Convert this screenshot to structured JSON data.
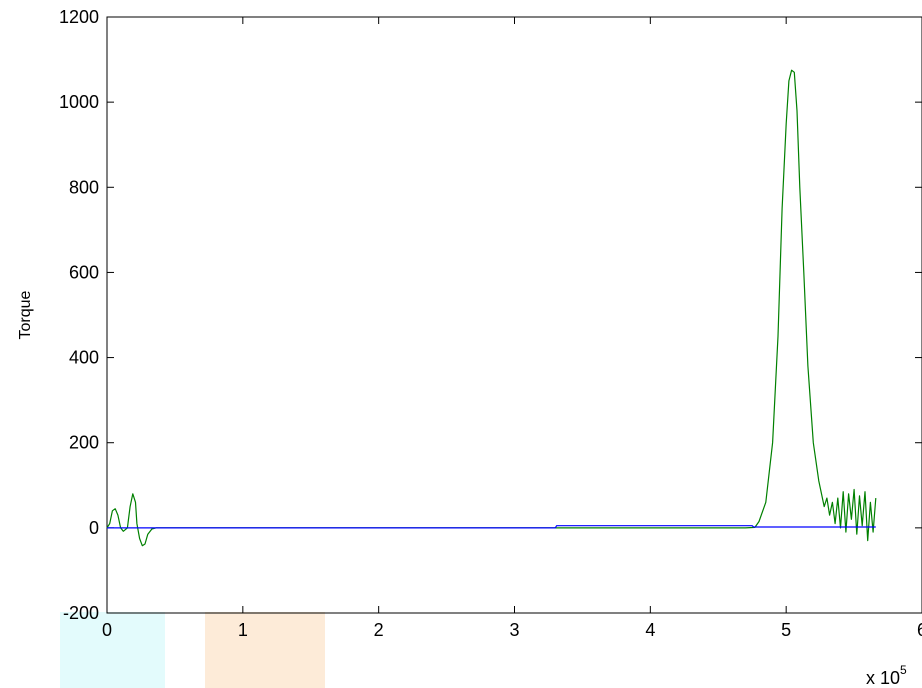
{
  "chart_data": {
    "type": "line",
    "title": "",
    "xlabel": "",
    "ylabel": "Torque",
    "x_multiplier_label": "x 10",
    "x_multiplier_exponent": "5",
    "xlim": [
      0,
      6
    ],
    "ylim": [
      -200,
      1200
    ],
    "x_ticks": [
      "0",
      "1",
      "2",
      "3",
      "4",
      "5",
      "6"
    ],
    "y_ticks": [
      "-200",
      "0",
      "200",
      "400",
      "600",
      "800",
      "1000",
      "1200"
    ],
    "grid": false,
    "series": [
      {
        "color": "#008000",
        "points": [
          [
            0.0,
            0
          ],
          [
            0.02,
            10
          ],
          [
            0.04,
            40
          ],
          [
            0.06,
            45
          ],
          [
            0.08,
            30
          ],
          [
            0.1,
            0
          ],
          [
            0.12,
            -8
          ],
          [
            0.15,
            0
          ],
          [
            0.17,
            50
          ],
          [
            0.19,
            80
          ],
          [
            0.21,
            60
          ],
          [
            0.22,
            10
          ],
          [
            0.24,
            -25
          ],
          [
            0.26,
            -42
          ],
          [
            0.28,
            -38
          ],
          [
            0.3,
            -15
          ],
          [
            0.33,
            -3
          ],
          [
            0.36,
            0
          ],
          [
            3.3,
            0
          ],
          [
            4.7,
            0
          ],
          [
            4.77,
            1
          ],
          [
            4.8,
            15
          ],
          [
            4.85,
            60
          ],
          [
            4.9,
            200
          ],
          [
            4.94,
            450
          ],
          [
            4.97,
            750
          ],
          [
            5.0,
            950
          ],
          [
            5.02,
            1050
          ],
          [
            5.04,
            1075
          ],
          [
            5.06,
            1070
          ],
          [
            5.08,
            980
          ],
          [
            5.1,
            800
          ],
          [
            5.13,
            600
          ],
          [
            5.16,
            380
          ],
          [
            5.2,
            200
          ],
          [
            5.24,
            110
          ],
          [
            5.28,
            50
          ],
          [
            5.3,
            70
          ],
          [
            5.32,
            30
          ],
          [
            5.34,
            60
          ],
          [
            5.36,
            10
          ],
          [
            5.38,
            70
          ],
          [
            5.4,
            0
          ],
          [
            5.42,
            85
          ],
          [
            5.44,
            -10
          ],
          [
            5.46,
            80
          ],
          [
            5.48,
            20
          ],
          [
            5.5,
            90
          ],
          [
            5.52,
            -15
          ],
          [
            5.54,
            75
          ],
          [
            5.56,
            5
          ],
          [
            5.58,
            85
          ],
          [
            5.6,
            -30
          ],
          [
            5.62,
            60
          ],
          [
            5.64,
            -10
          ],
          [
            5.66,
            70
          ]
        ]
      },
      {
        "color": "#0000ff",
        "points": [
          [
            0.0,
            0
          ],
          [
            3.3,
            0
          ],
          [
            3.31,
            5
          ],
          [
            4.75,
            5
          ],
          [
            4.76,
            2
          ],
          [
            5.66,
            2
          ]
        ]
      }
    ]
  },
  "watermark_colors": {
    "cyan": "#e3fbfc",
    "orange": "#fdebd8"
  }
}
